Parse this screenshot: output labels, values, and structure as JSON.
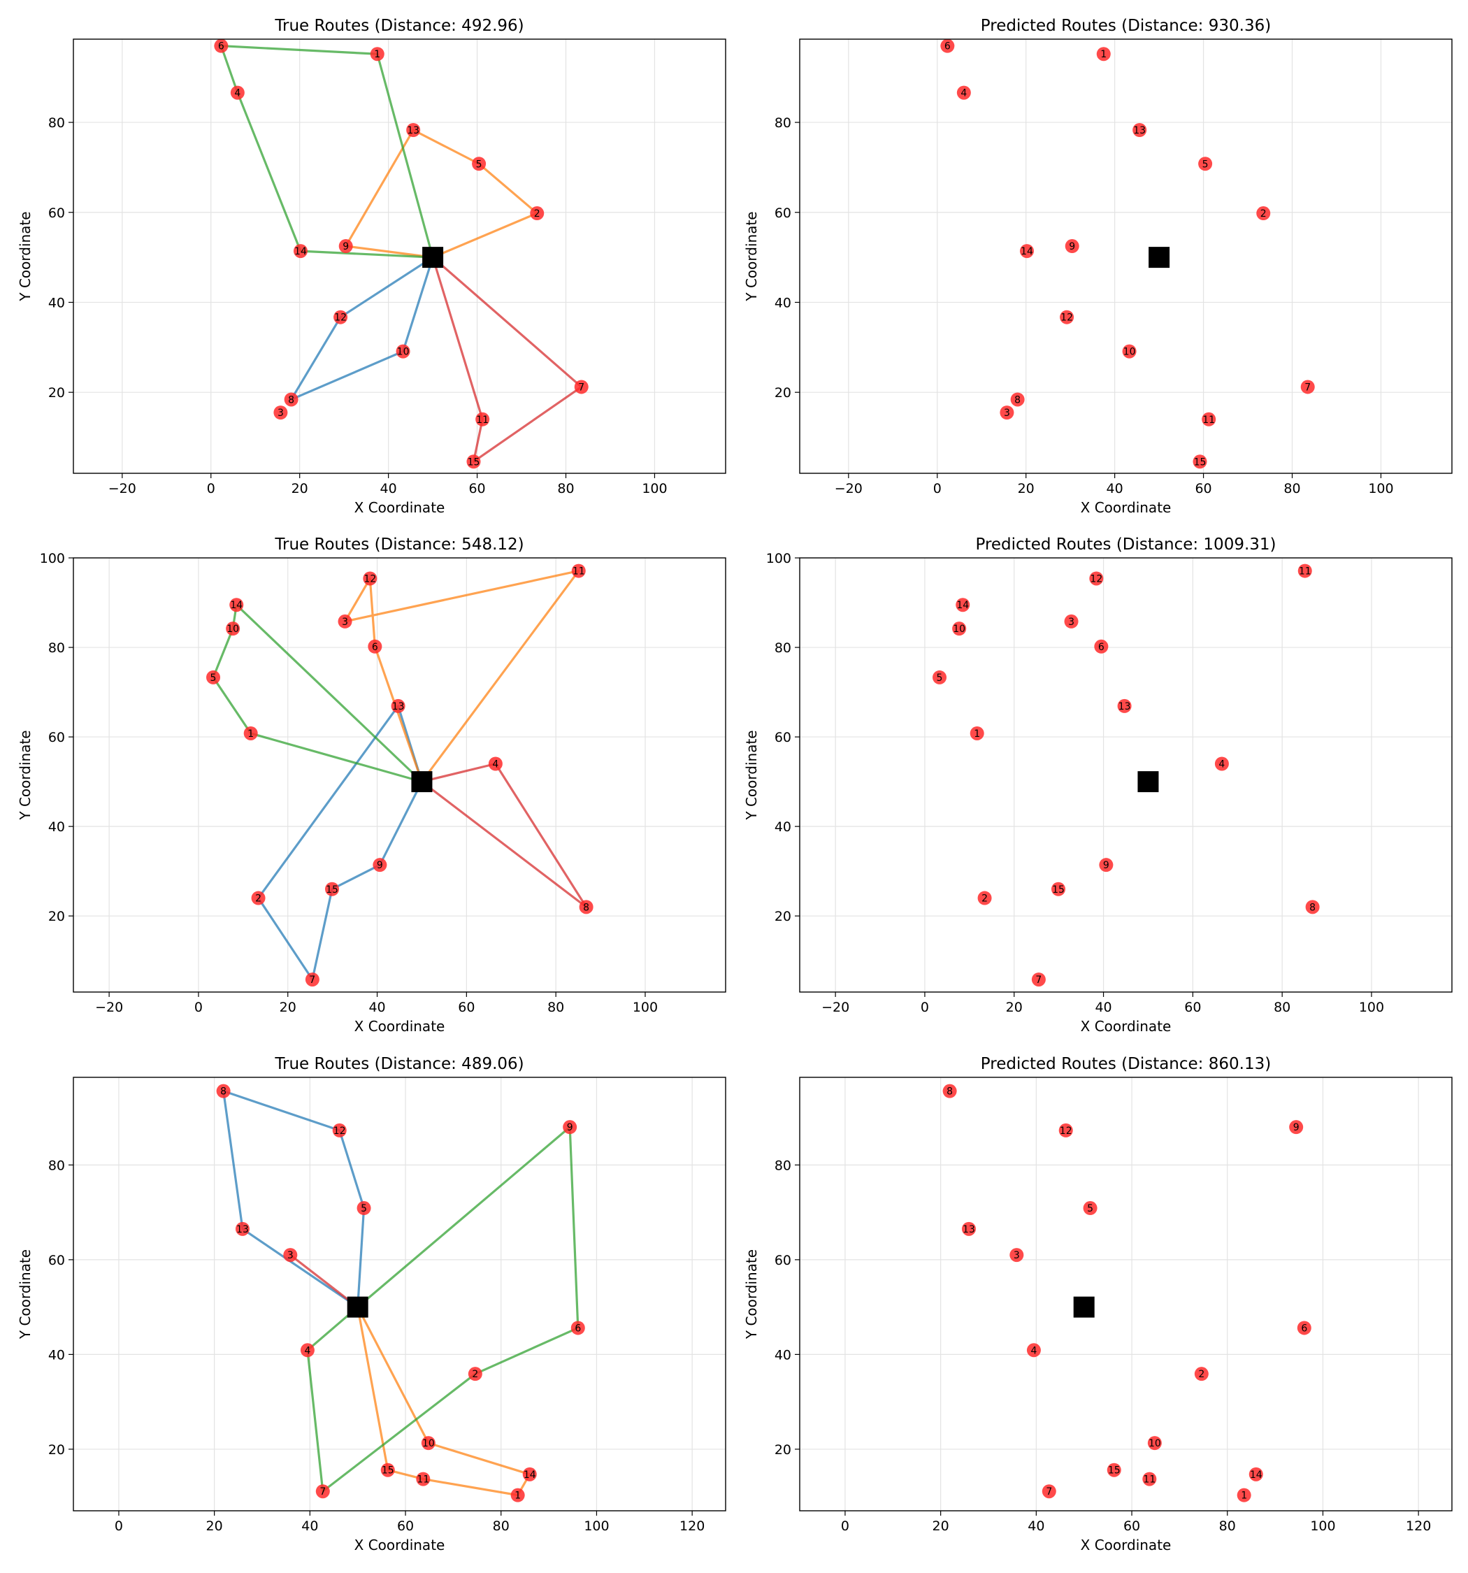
{
  "colors": {
    "route_blue": "#1f77b4",
    "route_orange": "#ff7f0e",
    "route_green": "#2ca02c",
    "route_red": "#d62728",
    "customer": "#ff2a2a",
    "depot": "#000000",
    "grid": "#e3e3e3"
  },
  "markers": {
    "customer": "red-circle",
    "depot": "black-square"
  },
  "chart_data": [
    {
      "type": "scatter",
      "title": "True Routes (Distance: 492.96)",
      "xlabel": "X Coordinate",
      "ylabel": "Y Coordinate",
      "xlim": [
        -31,
        116
      ],
      "ylim": [
        2,
        98.5
      ],
      "xticks": [
        -20,
        0,
        20,
        40,
        60,
        80,
        100
      ],
      "yticks": [
        20,
        40,
        60,
        80
      ],
      "grid": true,
      "depot": {
        "x": 50,
        "y": 50
      },
      "nodes": [
        {
          "id": "1",
          "x": 37.5,
          "y": 95.2
        },
        {
          "id": "2",
          "x": 73.5,
          "y": 59.8
        },
        {
          "id": "3",
          "x": 15.7,
          "y": 15.5
        },
        {
          "id": "4",
          "x": 6.0,
          "y": 86.6
        },
        {
          "id": "5",
          "x": 60.4,
          "y": 70.8
        },
        {
          "id": "6",
          "x": 2.3,
          "y": 97.0
        },
        {
          "id": "7",
          "x": 83.5,
          "y": 21.2
        },
        {
          "id": "8",
          "x": 18.1,
          "y": 18.4
        },
        {
          "id": "9",
          "x": 30.4,
          "y": 52.5
        },
        {
          "id": "10",
          "x": 43.3,
          "y": 29.1
        },
        {
          "id": "11",
          "x": 61.2,
          "y": 14.0
        },
        {
          "id": "12",
          "x": 29.2,
          "y": 36.7
        },
        {
          "id": "13",
          "x": 45.6,
          "y": 78.3
        },
        {
          "id": "14",
          "x": 20.2,
          "y": 51.4
        },
        {
          "id": "15",
          "x": 59.2,
          "y": 4.6
        }
      ],
      "routes": [
        {
          "color": "route_blue",
          "path": [
            "depot",
            "10",
            "8",
            "12",
            "depot"
          ]
        },
        {
          "color": "route_orange",
          "path": [
            "depot",
            "9",
            "13",
            "5",
            "2",
            "depot"
          ]
        },
        {
          "color": "route_green",
          "path": [
            "depot",
            "14",
            "4",
            "6",
            "1",
            "depot"
          ]
        },
        {
          "color": "route_red",
          "path": [
            "depot",
            "11",
            "15",
            "7",
            "depot"
          ]
        }
      ]
    },
    {
      "type": "scatter",
      "title": "Predicted Routes (Distance: 930.36)",
      "xlabel": "X Coordinate",
      "ylabel": "Y Coordinate",
      "xlim": [
        -31,
        116
      ],
      "ylim": [
        2,
        98.5
      ],
      "xticks": [
        -20,
        0,
        20,
        40,
        60,
        80,
        100
      ],
      "yticks": [
        20,
        40,
        60,
        80
      ],
      "grid": true,
      "depot": {
        "x": 50,
        "y": 50
      },
      "nodes": [
        {
          "id": "1",
          "x": 37.5,
          "y": 95.2
        },
        {
          "id": "2",
          "x": 73.5,
          "y": 59.8
        },
        {
          "id": "3",
          "x": 15.7,
          "y": 15.5
        },
        {
          "id": "4",
          "x": 6.0,
          "y": 86.6
        },
        {
          "id": "5",
          "x": 60.4,
          "y": 70.8
        },
        {
          "id": "6",
          "x": 2.3,
          "y": 97.0
        },
        {
          "id": "7",
          "x": 83.5,
          "y": 21.2
        },
        {
          "id": "8",
          "x": 18.1,
          "y": 18.4
        },
        {
          "id": "9",
          "x": 30.4,
          "y": 52.5
        },
        {
          "id": "10",
          "x": 43.3,
          "y": 29.1
        },
        {
          "id": "11",
          "x": 61.2,
          "y": 14.0
        },
        {
          "id": "12",
          "x": 29.2,
          "y": 36.7
        },
        {
          "id": "13",
          "x": 45.6,
          "y": 78.3
        },
        {
          "id": "14",
          "x": 20.2,
          "y": 51.4
        },
        {
          "id": "15",
          "x": 59.2,
          "y": 4.6
        }
      ],
      "routes": []
    },
    {
      "type": "scatter",
      "title": "True Routes (Distance: 548.12)",
      "xlabel": "X Coordinate",
      "ylabel": "Y Coordinate",
      "xlim": [
        -28,
        118
      ],
      "ylim": [
        3,
        100
      ],
      "xticks": [
        -20,
        0,
        20,
        40,
        60,
        80,
        100
      ],
      "yticks": [
        20,
        40,
        60,
        80,
        100
      ],
      "grid": true,
      "depot": {
        "x": 50,
        "y": 50
      },
      "nodes": [
        {
          "id": "1",
          "x": 11.7,
          "y": 60.8
        },
        {
          "id": "2",
          "x": 13.4,
          "y": 24.0
        },
        {
          "id": "3",
          "x": 32.8,
          "y": 85.8
        },
        {
          "id": "4",
          "x": 66.5,
          "y": 54.0
        },
        {
          "id": "5",
          "x": 3.3,
          "y": 73.3
        },
        {
          "id": "6",
          "x": 39.5,
          "y": 80.2
        },
        {
          "id": "7",
          "x": 25.5,
          "y": 5.8
        },
        {
          "id": "8",
          "x": 86.8,
          "y": 22.0
        },
        {
          "id": "9",
          "x": 40.6,
          "y": 31.4
        },
        {
          "id": "10",
          "x": 7.7,
          "y": 84.2
        },
        {
          "id": "11",
          "x": 85.1,
          "y": 97.1
        },
        {
          "id": "12",
          "x": 38.4,
          "y": 95.4
        },
        {
          "id": "13",
          "x": 44.7,
          "y": 66.9
        },
        {
          "id": "14",
          "x": 8.5,
          "y": 89.5
        },
        {
          "id": "15",
          "x": 29.9,
          "y": 26.0
        }
      ],
      "routes": [
        {
          "color": "route_blue",
          "path": [
            "depot",
            "9",
            "15",
            "7",
            "2",
            "13",
            "depot"
          ]
        },
        {
          "color": "route_orange",
          "path": [
            "depot",
            "6",
            "12",
            "3",
            "11",
            "depot"
          ]
        },
        {
          "color": "route_green",
          "path": [
            "depot",
            "1",
            "5",
            "10",
            "14",
            "depot"
          ]
        },
        {
          "color": "route_red",
          "path": [
            "depot",
            "4",
            "8",
            "depot"
          ]
        }
      ]
    },
    {
      "type": "scatter",
      "title": "Predicted Routes (Distance: 1009.31)",
      "xlabel": "X Coordinate",
      "ylabel": "Y Coordinate",
      "xlim": [
        -28,
        118
      ],
      "ylim": [
        3,
        100
      ],
      "xticks": [
        -20,
        0,
        20,
        40,
        60,
        80,
        100
      ],
      "yticks": [
        20,
        40,
        60,
        80,
        100
      ],
      "grid": true,
      "depot": {
        "x": 50,
        "y": 50
      },
      "nodes": [
        {
          "id": "1",
          "x": 11.7,
          "y": 60.8
        },
        {
          "id": "2",
          "x": 13.4,
          "y": 24.0
        },
        {
          "id": "3",
          "x": 32.8,
          "y": 85.8
        },
        {
          "id": "4",
          "x": 66.5,
          "y": 54.0
        },
        {
          "id": "5",
          "x": 3.3,
          "y": 73.3
        },
        {
          "id": "6",
          "x": 39.5,
          "y": 80.2
        },
        {
          "id": "7",
          "x": 25.5,
          "y": 5.8
        },
        {
          "id": "8",
          "x": 86.8,
          "y": 22.0
        },
        {
          "id": "9",
          "x": 40.6,
          "y": 31.4
        },
        {
          "id": "10",
          "x": 7.7,
          "y": 84.2
        },
        {
          "id": "11",
          "x": 85.1,
          "y": 97.1
        },
        {
          "id": "12",
          "x": 38.4,
          "y": 95.4
        },
        {
          "id": "13",
          "x": 44.7,
          "y": 66.9
        },
        {
          "id": "14",
          "x": 8.5,
          "y": 89.5
        },
        {
          "id": "15",
          "x": 29.9,
          "y": 26.0
        }
      ],
      "routes": []
    },
    {
      "type": "scatter",
      "title": "True Routes (Distance: 489.06)",
      "xlabel": "X Coordinate",
      "ylabel": "Y Coordinate",
      "xlim": [
        -9.5,
        127
      ],
      "ylim": [
        7,
        98.5
      ],
      "xticks": [
        0,
        20,
        40,
        60,
        80,
        100,
        120
      ],
      "yticks": [
        20,
        40,
        60,
        80
      ],
      "grid": true,
      "depot": {
        "x": 50,
        "y": 50
      },
      "nodes": [
        {
          "id": "1",
          "x": 83.5,
          "y": 10.3
        },
        {
          "id": "2",
          "x": 74.6,
          "y": 35.9
        },
        {
          "id": "3",
          "x": 35.9,
          "y": 61.0
        },
        {
          "id": "4",
          "x": 39.5,
          "y": 40.9
        },
        {
          "id": "5",
          "x": 51.3,
          "y": 70.9
        },
        {
          "id": "6",
          "x": 96.1,
          "y": 45.6
        },
        {
          "id": "7",
          "x": 42.7,
          "y": 11.1
        },
        {
          "id": "8",
          "x": 21.9,
          "y": 95.6
        },
        {
          "id": "9",
          "x": 94.4,
          "y": 88.0
        },
        {
          "id": "10",
          "x": 64.8,
          "y": 21.3
        },
        {
          "id": "11",
          "x": 63.7,
          "y": 13.7
        },
        {
          "id": "12",
          "x": 46.2,
          "y": 87.3
        },
        {
          "id": "13",
          "x": 25.9,
          "y": 66.5
        },
        {
          "id": "14",
          "x": 86.0,
          "y": 14.7
        },
        {
          "id": "15",
          "x": 56.3,
          "y": 15.6
        }
      ],
      "routes": [
        {
          "color": "route_blue",
          "path": [
            "depot",
            "5",
            "12",
            "8",
            "13",
            "depot"
          ]
        },
        {
          "color": "route_red",
          "path": [
            "depot",
            "3",
            "depot"
          ]
        },
        {
          "color": "route_orange",
          "path": [
            "depot",
            "15",
            "11",
            "1",
            "14",
            "10",
            "depot"
          ]
        },
        {
          "color": "route_green",
          "path": [
            "depot",
            "4",
            "7",
            "2",
            "6",
            "9",
            "depot"
          ]
        }
      ]
    },
    {
      "type": "scatter",
      "title": "Predicted Routes (Distance: 860.13)",
      "xlabel": "X Coordinate",
      "ylabel": "Y Coordinate",
      "xlim": [
        -9.5,
        127
      ],
      "ylim": [
        7,
        98.5
      ],
      "xticks": [
        0,
        20,
        40,
        60,
        80,
        100,
        120
      ],
      "yticks": [
        20,
        40,
        60,
        80
      ],
      "grid": true,
      "depot": {
        "x": 50,
        "y": 50
      },
      "nodes": [
        {
          "id": "1",
          "x": 83.5,
          "y": 10.3
        },
        {
          "id": "2",
          "x": 74.6,
          "y": 35.9
        },
        {
          "id": "3",
          "x": 35.9,
          "y": 61.0
        },
        {
          "id": "4",
          "x": 39.5,
          "y": 40.9
        },
        {
          "id": "5",
          "x": 51.3,
          "y": 70.9
        },
        {
          "id": "6",
          "x": 96.1,
          "y": 45.6
        },
        {
          "id": "7",
          "x": 42.7,
          "y": 11.1
        },
        {
          "id": "8",
          "x": 21.9,
          "y": 95.6
        },
        {
          "id": "9",
          "x": 94.4,
          "y": 88.0
        },
        {
          "id": "10",
          "x": 64.8,
          "y": 21.3
        },
        {
          "id": "11",
          "x": 63.7,
          "y": 13.7
        },
        {
          "id": "12",
          "x": 46.2,
          "y": 87.3
        },
        {
          "id": "13",
          "x": 25.9,
          "y": 66.5
        },
        {
          "id": "14",
          "x": 86.0,
          "y": 14.7
        },
        {
          "id": "15",
          "x": 56.3,
          "y": 15.6
        }
      ],
      "routes": []
    }
  ]
}
